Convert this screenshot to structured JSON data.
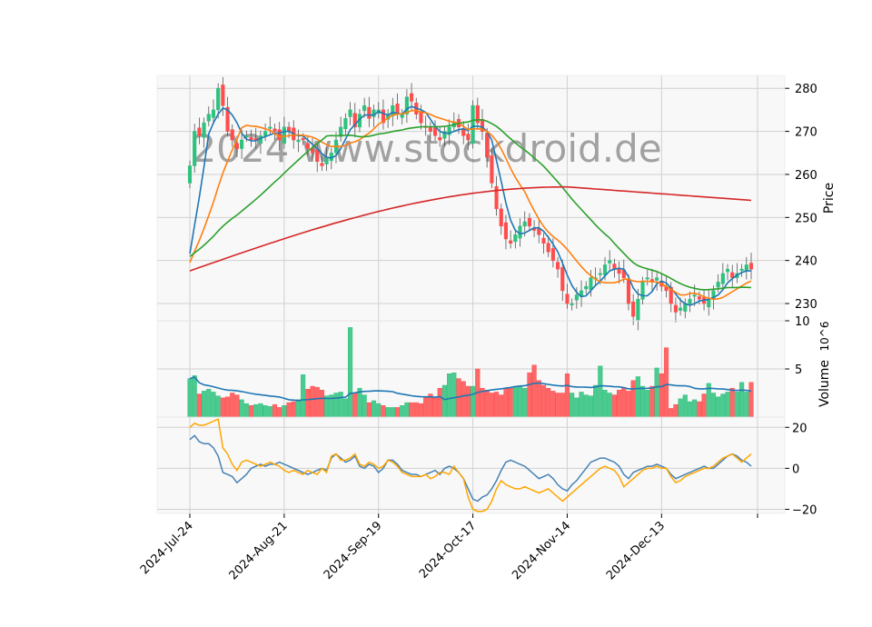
{
  "watermark": "2024 www.stockdroid.de",
  "colors": {
    "panel_bg": "#f8f8f8",
    "grid": "#d0d0d0",
    "up": "#2ec27e",
    "down": "#ff4d4d",
    "ma_fast": "#1f77b4",
    "ma_mid": "#ff7f0e",
    "ma_slow": "#2ca02c",
    "ma_long": "#d62728",
    "vol_ma": "#1f77b4",
    "osc_a": "#4682b4",
    "osc_b": "#ffa500"
  },
  "chart_data": {
    "type": "candlestick",
    "xlabels": [
      "2024-Jul-24",
      "2024-Aug-21",
      "2024-Sep-19",
      "2024-Oct-17",
      "2024-Nov-14",
      "2024-Dec-13"
    ],
    "price_axis": {
      "label": "Price",
      "ticks": [
        230,
        240,
        250,
        260,
        270,
        280
      ],
      "ylim": [
        226,
        283
      ]
    },
    "volume_axis": {
      "label": "Volume",
      "unit": "10^6",
      "ticks": [
        5,
        10
      ],
      "ylim": [
        0,
        10
      ]
    },
    "osc_axis": {
      "ticks": [
        -20,
        0,
        20
      ],
      "ylim": [
        -22,
        25
      ]
    },
    "closes": [
      262,
      270,
      269,
      272,
      274,
      275,
      280,
      276,
      270,
      268,
      266,
      268,
      269,
      268,
      268,
      269,
      270,
      271,
      270,
      268,
      271,
      270,
      268,
      268,
      268,
      266,
      265,
      263,
      262,
      264,
      265,
      268,
      271,
      273,
      275,
      271,
      274,
      276,
      273,
      275,
      275,
      272,
      274,
      276,
      274,
      274,
      278,
      277,
      274,
      272,
      271,
      270,
      269,
      268,
      270,
      271,
      272,
      271,
      269,
      268,
      276,
      272,
      270,
      264,
      258,
      252,
      248,
      245,
      244,
      246,
      248,
      249,
      248,
      247,
      246,
      244,
      242,
      240,
      238,
      233,
      230,
      230,
      232,
      233,
      234,
      236,
      236,
      237,
      239,
      240,
      238,
      237,
      236,
      230,
      227,
      231,
      235,
      236,
      235,
      236,
      234,
      233,
      230,
      228,
      229,
      230,
      231,
      232,
      231,
      230,
      231,
      233,
      235,
      237,
      238,
      236,
      237,
      238,
      239,
      238
    ],
    "volumes": [
      4.0,
      4.3,
      2.4,
      2.7,
      2.9,
      2.6,
      2.2,
      2.0,
      2.1,
      2.5,
      2.3,
      1.8,
      1.4,
      1.2,
      1.3,
      1.4,
      1.2,
      1.1,
      1.3,
      1.0,
      1.2,
      1.5,
      1.6,
      1.8,
      4.4,
      2.9,
      3.2,
      3.1,
      2.8,
      2.2,
      2.3,
      2.5,
      2.6,
      1.9,
      9.3,
      2.5,
      3.0,
      2.3,
      1.5,
      1.7,
      1.4,
      1.2,
      1.0,
      1.0,
      1.0,
      1.2,
      1.5,
      1.5,
      1.5,
      1.4,
      2.0,
      2.4,
      2.1,
      3.0,
      3.3,
      4.5,
      4.6,
      4.0,
      3.7,
      3.2,
      3.2,
      5.0,
      3.0,
      2.8,
      2.5,
      2.6,
      2.3,
      3.0,
      3.0,
      3.2,
      3.2,
      3.0,
      4.6,
      5.4,
      3.8,
      3.3,
      3.0,
      2.7,
      2.5,
      2.5,
      4.5,
      2.5,
      2.0,
      2.6,
      2.3,
      2.2,
      3.3,
      5.3,
      2.8,
      2.5,
      2.3,
      2.8,
      3.0,
      2.7,
      3.8,
      4.2,
      3.2,
      2.8,
      3.2,
      5.1,
      4.5,
      7.2,
      0.9,
      1.3,
      1.9,
      2.3,
      1.6,
      1.8,
      1.6,
      2.4,
      3.5,
      2.5,
      2.1,
      2.4,
      2.6,
      3.0,
      2.6,
      3.6,
      2.6,
      3.6
    ],
    "osc_a": [
      14,
      16,
      13,
      12,
      12,
      10,
      6,
      -2,
      -3,
      -4,
      -7,
      -5,
      -3,
      0,
      1,
      2,
      1,
      2,
      2,
      3,
      2,
      1,
      0,
      -1,
      -2,
      -3,
      -2,
      -1,
      0,
      -1,
      5,
      7,
      5,
      3,
      4,
      6,
      1,
      0,
      2,
      1,
      -2,
      0,
      4,
      4,
      2,
      -1,
      -2,
      -3,
      -3,
      -4,
      -3,
      -2,
      -1,
      -3,
      0,
      1,
      0,
      -2,
      -5,
      -10,
      -15,
      -16,
      -14,
      -13,
      -10,
      -6,
      -1,
      3,
      4,
      3,
      2,
      1,
      -1,
      -3,
      -5,
      -4,
      -3,
      -5,
      -8,
      -10,
      -11,
      -8,
      -6,
      -3,
      0,
      3,
      4,
      5,
      5,
      4,
      3,
      1,
      -3,
      -5,
      -2,
      -1,
      0,
      1,
      1,
      2,
      1,
      0,
      -3,
      -5,
      -4,
      -3,
      -2,
      -1,
      0,
      1,
      0,
      0,
      2,
      4,
      6,
      7,
      6,
      4,
      3,
      1
    ],
    "osc_b": [
      20,
      22,
      21,
      21,
      22,
      23,
      24,
      10,
      7,
      2,
      -1,
      3,
      4,
      3,
      2,
      1,
      2,
      3,
      2,
      1,
      -1,
      -2,
      -1,
      -2,
      -3,
      -1,
      -2,
      -3,
      0,
      -2,
      6,
      7,
      4,
      4,
      5,
      7,
      2,
      1,
      3,
      2,
      0,
      1,
      4,
      3,
      1,
      -2,
      -3,
      -4,
      -4,
      -4,
      -3,
      -5,
      -4,
      -2,
      -2,
      -3,
      1,
      -2,
      -5,
      -14,
      -20,
      -21,
      -21,
      -20,
      -16,
      -10,
      -6,
      -8,
      -9,
      -10,
      -10,
      -9,
      -10,
      -11,
      -12,
      -11,
      -10,
      -12,
      -14,
      -16,
      -14,
      -12,
      -10,
      -8,
      -6,
      -4,
      -2,
      0,
      1,
      0,
      -1,
      -4,
      -9,
      -7,
      -5,
      -3,
      -1,
      0,
      0,
      1,
      0,
      0,
      -4,
      -7,
      -6,
      -4,
      -3,
      -2,
      -1,
      0,
      0,
      1,
      3,
      5,
      6,
      7,
      5,
      3,
      5,
      7
    ]
  }
}
